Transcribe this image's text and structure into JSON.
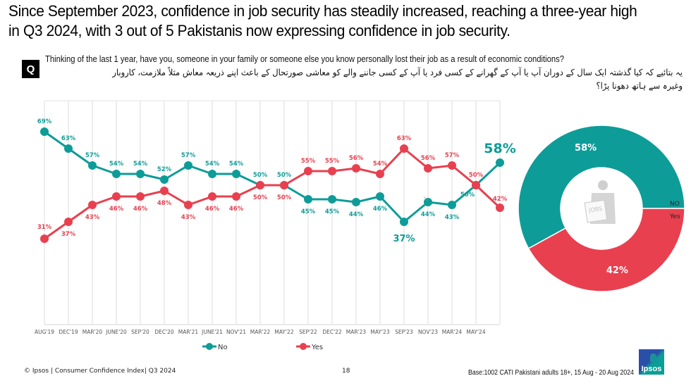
{
  "title": "Since September 2023, confidence in job security has steadily increased, reaching a three-year high in Q3 2024, with 3 out of 5 Pakistanis now expressing confidence in job security.",
  "question": {
    "badge": "Q",
    "text_en": "Thinking of the last 1 year, have you, someone in your family or someone else you know personally lost their job as a result of economic conditions?",
    "text_ur": "یہ بتائیے کہ کیا گذشتہ ایک سال کے دوران آپ یا آپ کے گھرانے کے کسی فرد یا آپ کے کسی جاننے والے کو معاشی صورتحال کے باعث اپنے ذریعہ معاش مثلاً ملازمت، کاروبار وغیرہ سے ہاتھ دھونا پڑا؟"
  },
  "colors": {
    "no": "#0e9c98",
    "yes": "#e8404f",
    "grid": "#e3e3e3",
    "axis_text": "#555555"
  },
  "chart_data": [
    {
      "type": "line",
      "categories": [
        "AUG'19",
        "DEC'19",
        "MAR'20",
        "JUNE'20",
        "SEP'20",
        "DEC'20",
        "MAR'21",
        "JUNE'21",
        "NOV'21",
        "MAR'22",
        "MAY'22",
        "SEP'22",
        "DEC'22",
        "MAR'23",
        "MAY'23",
        "SEP'23",
        "NOV'23",
        "MAR'24",
        "MAY'24",
        ""
      ],
      "series": [
        {
          "name": "No",
          "values": [
            69,
            63,
            57,
            54,
            54,
            52,
            57,
            54,
            54,
            50,
            50,
            45,
            45,
            44,
            46,
            37,
            44,
            43,
            50,
            58
          ]
        },
        {
          "name": "Yes",
          "values": [
            31,
            37,
            43,
            46,
            46,
            48,
            43,
            46,
            46,
            50,
            50,
            55,
            55,
            56,
            54,
            63,
            56,
            57,
            50,
            42
          ]
        }
      ],
      "value_suffix": "%",
      "highlighted_labels": {
        "No": [
          15,
          19
        ]
      },
      "ylim": [
        0,
        80
      ],
      "grid": "vertical",
      "legend": "bottom",
      "title": "",
      "xlabel": "",
      "ylabel": ""
    },
    {
      "type": "pie",
      "style": "donut",
      "labels": [
        "NO",
        "Yes"
      ],
      "values": [
        58,
        42
      ],
      "value_suffix": "%",
      "center_icon": "jobs-newspaper-person-icon",
      "legend": "right"
    }
  ],
  "footer": {
    "copyright": "© Ipsos | Consumer Confidence Index| Q3 2024",
    "page_number": "18",
    "base_note": "Base:1002 CATI Pakistani adults 18+, 15 Aug - 20 Aug  2024",
    "logo_text": "Ipsos"
  }
}
